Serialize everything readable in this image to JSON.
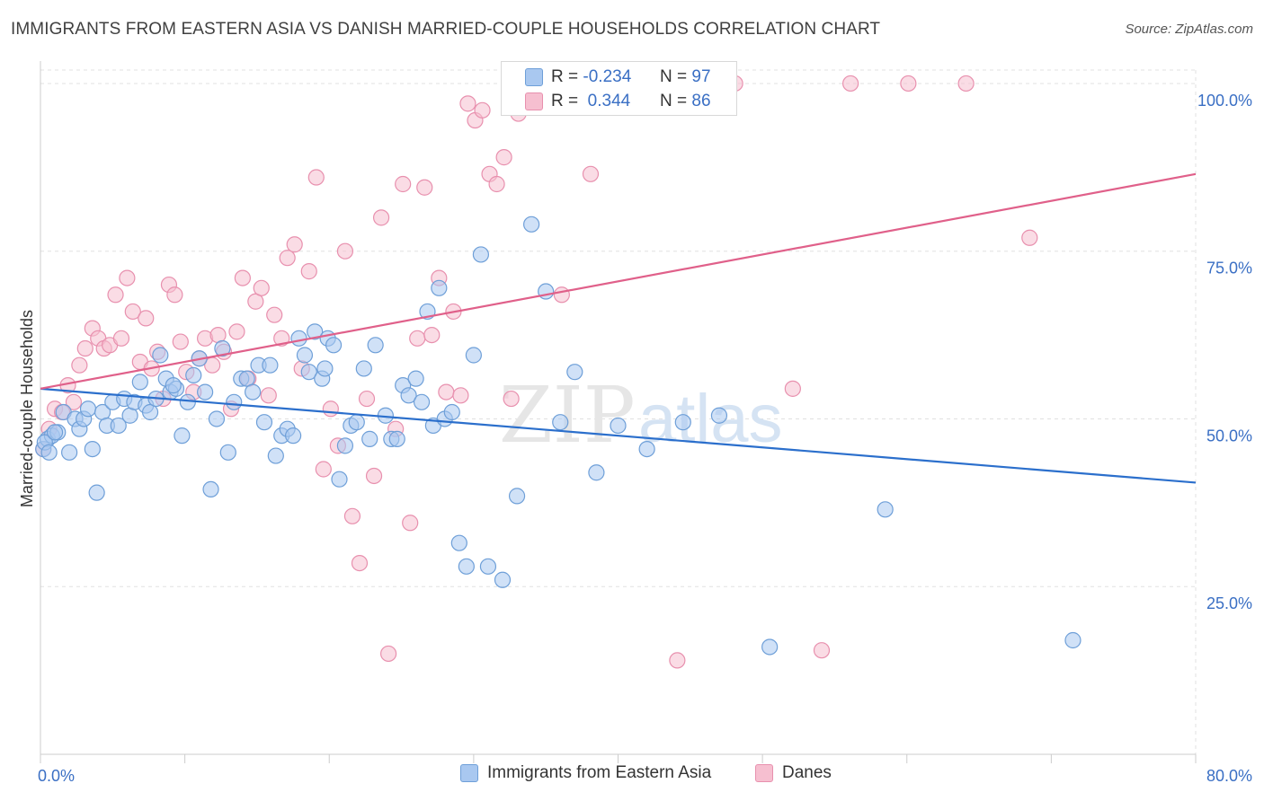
{
  "header": {
    "title": "IMMIGRANTS FROM EASTERN ASIA VS DANISH MARRIED-COUPLE HOUSEHOLDS CORRELATION CHART",
    "source": "Source: ZipAtlas.com"
  },
  "watermark": {
    "zip": "ZIP",
    "atlas": "atlas"
  },
  "stats": {
    "blue": {
      "r_label": "R =",
      "r_value": "-0.234",
      "n_label": "N =",
      "n_value": "97"
    },
    "pink": {
      "r_label": "R =",
      "r_value": "0.344",
      "n_label": "N =",
      "n_value": "86"
    }
  },
  "colors": {
    "blue_fill": "#a9c8f0",
    "blue_stroke": "#6e9fd8",
    "blue_line": "#2b6fcc",
    "pink_fill": "#f6bfd0",
    "pink_stroke": "#e890ae",
    "pink_line": "#e0608a",
    "grid": "#e0e0e0",
    "axis_label": "#3a6fc4"
  },
  "chart_data": {
    "type": "scatter",
    "title": "IMMIGRANTS FROM EASTERN ASIA VS DANISH MARRIED-COUPLE HOUSEHOLDS CORRELATION CHART",
    "xlabel": "",
    "ylabel": "Married-couple Households",
    "xlim": [
      0,
      80
    ],
    "ylim": [
      0,
      102
    ],
    "x_tick_labels": [
      "0.0%",
      "80.0%"
    ],
    "y_ticks": [
      25,
      50,
      75,
      100
    ],
    "y_tick_labels": [
      "25.0%",
      "50.0%",
      "75.0%",
      "100.0%"
    ],
    "grid": true,
    "legend_position": "bottom",
    "series": [
      {
        "name": "Immigrants from Eastern Asia",
        "color": "#a9c8f0",
        "trend": {
          "x": [
            0,
            80
          ],
          "y": [
            54.5,
            40.5
          ]
        },
        "points": [
          [
            0.2,
            45.5
          ],
          [
            0.5,
            47
          ],
          [
            0.8,
            47.5
          ],
          [
            1.2,
            48
          ],
          [
            1.6,
            51
          ],
          [
            2.0,
            45
          ],
          [
            2.4,
            50
          ],
          [
            2.7,
            48.5
          ],
          [
            3.0,
            50
          ],
          [
            3.3,
            51.5
          ],
          [
            3.6,
            45.5
          ],
          [
            3.9,
            39
          ],
          [
            4.3,
            51
          ],
          [
            4.6,
            49
          ],
          [
            5.0,
            52.5
          ],
          [
            5.4,
            49
          ],
          [
            5.8,
            53
          ],
          [
            6.2,
            50.5
          ],
          [
            6.5,
            52.5
          ],
          [
            6.9,
            55.5
          ],
          [
            7.3,
            52
          ],
          [
            7.6,
            51
          ],
          [
            8.0,
            53
          ],
          [
            8.3,
            59.5
          ],
          [
            8.7,
            56
          ],
          [
            9.0,
            54
          ],
          [
            9.4,
            54.5
          ],
          [
            9.8,
            47.5
          ],
          [
            10.2,
            52.5
          ],
          [
            10.6,
            56.5
          ],
          [
            11.0,
            59
          ],
          [
            11.4,
            54
          ],
          [
            11.8,
            39.5
          ],
          [
            12.2,
            50
          ],
          [
            12.6,
            60.5
          ],
          [
            13.0,
            45
          ],
          [
            13.4,
            52.5
          ],
          [
            13.9,
            56
          ],
          [
            14.3,
            56
          ],
          [
            14.7,
            54
          ],
          [
            15.1,
            58
          ],
          [
            15.5,
            49.5
          ],
          [
            15.9,
            58
          ],
          [
            16.3,
            44.5
          ],
          [
            16.7,
            47.5
          ],
          [
            17.1,
            48.5
          ],
          [
            17.5,
            47.5
          ],
          [
            17.9,
            62
          ],
          [
            18.3,
            59.5
          ],
          [
            18.6,
            57
          ],
          [
            19.0,
            63
          ],
          [
            19.5,
            56
          ],
          [
            19.9,
            62
          ],
          [
            20.3,
            61
          ],
          [
            20.7,
            41
          ],
          [
            21.1,
            46
          ],
          [
            21.5,
            49
          ],
          [
            21.9,
            49.5
          ],
          [
            22.4,
            57.5
          ],
          [
            22.8,
            47
          ],
          [
            23.2,
            61
          ],
          [
            23.9,
            50.5
          ],
          [
            24.3,
            47
          ],
          [
            24.7,
            47
          ],
          [
            25.1,
            55
          ],
          [
            25.5,
            53.5
          ],
          [
            26.0,
            56
          ],
          [
            26.4,
            52.5
          ],
          [
            26.8,
            66
          ],
          [
            27.2,
            49
          ],
          [
            27.6,
            69.5
          ],
          [
            28.0,
            50
          ],
          [
            28.5,
            51
          ],
          [
            29.0,
            31.5
          ],
          [
            29.5,
            28
          ],
          [
            30.0,
            59.5
          ],
          [
            30.5,
            74.5
          ],
          [
            31.0,
            28
          ],
          [
            32.0,
            26
          ],
          [
            33.0,
            38.5
          ],
          [
            34.0,
            79
          ],
          [
            35.0,
            69
          ],
          [
            36.0,
            49.5
          ],
          [
            37.0,
            57
          ],
          [
            38.5,
            42
          ],
          [
            40.0,
            49
          ],
          [
            42.0,
            45.5
          ],
          [
            44.5,
            49.5
          ],
          [
            47.0,
            50.5
          ],
          [
            50.5,
            16
          ],
          [
            58.5,
            36.5
          ],
          [
            71.5,
            17
          ],
          [
            0.3,
            46.5
          ],
          [
            0.6,
            45
          ],
          [
            1.0,
            48
          ],
          [
            9.2,
            55
          ],
          [
            19.7,
            57.5
          ]
        ]
      },
      {
        "name": "Danes",
        "color": "#f6bfd0",
        "trend": {
          "x": [
            0,
            80
          ],
          "y": [
            54.5,
            86.5
          ]
        },
        "points": [
          [
            0.2,
            45.5
          ],
          [
            0.6,
            48.5
          ],
          [
            1.0,
            51.5
          ],
          [
            1.5,
            51
          ],
          [
            1.9,
            55
          ],
          [
            2.3,
            52.5
          ],
          [
            2.7,
            58
          ],
          [
            3.1,
            60.5
          ],
          [
            3.6,
            63.5
          ],
          [
            4.0,
            62
          ],
          [
            4.4,
            60.5
          ],
          [
            4.8,
            61
          ],
          [
            5.2,
            68.5
          ],
          [
            5.6,
            62
          ],
          [
            6.0,
            71
          ],
          [
            6.4,
            66
          ],
          [
            6.9,
            58.5
          ],
          [
            7.3,
            65
          ],
          [
            7.7,
            57.5
          ],
          [
            8.1,
            60
          ],
          [
            8.5,
            53
          ],
          [
            8.9,
            70
          ],
          [
            9.3,
            68.5
          ],
          [
            9.7,
            61.5
          ],
          [
            10.1,
            57
          ],
          [
            10.6,
            54
          ],
          [
            11.0,
            59
          ],
          [
            11.4,
            62
          ],
          [
            11.9,
            58
          ],
          [
            12.3,
            62.5
          ],
          [
            12.7,
            60
          ],
          [
            13.2,
            51.5
          ],
          [
            13.6,
            63
          ],
          [
            14.0,
            71
          ],
          [
            14.4,
            56
          ],
          [
            14.9,
            67.5
          ],
          [
            15.3,
            69.5
          ],
          [
            15.8,
            53.5
          ],
          [
            16.2,
            65.5
          ],
          [
            16.7,
            62
          ],
          [
            17.1,
            74
          ],
          [
            17.6,
            76
          ],
          [
            18.1,
            57.5
          ],
          [
            18.6,
            72
          ],
          [
            19.1,
            86
          ],
          [
            19.6,
            42.5
          ],
          [
            20.1,
            51.5
          ],
          [
            20.6,
            46
          ],
          [
            21.1,
            75
          ],
          [
            21.6,
            35.5
          ],
          [
            22.1,
            28.5
          ],
          [
            22.6,
            53
          ],
          [
            23.1,
            41.5
          ],
          [
            23.6,
            80
          ],
          [
            24.1,
            15
          ],
          [
            24.6,
            48.5
          ],
          [
            25.1,
            85
          ],
          [
            25.6,
            34.5
          ],
          [
            26.1,
            62
          ],
          [
            26.6,
            84.5
          ],
          [
            27.1,
            62.5
          ],
          [
            27.6,
            71
          ],
          [
            28.1,
            54
          ],
          [
            28.6,
            66
          ],
          [
            29.1,
            53.5
          ],
          [
            29.6,
            97
          ],
          [
            30.1,
            94.5
          ],
          [
            30.6,
            96
          ],
          [
            31.1,
            86.5
          ],
          [
            31.6,
            85
          ],
          [
            32.1,
            89
          ],
          [
            32.6,
            53
          ],
          [
            33.1,
            95.5
          ],
          [
            34.1,
            100
          ],
          [
            35.1,
            99.5
          ],
          [
            36.1,
            68.5
          ],
          [
            38.1,
            86.5
          ],
          [
            40.1,
            100
          ],
          [
            44.1,
            14
          ],
          [
            48.1,
            100
          ],
          [
            52.1,
            54.5
          ],
          [
            54.1,
            15.5
          ],
          [
            56.1,
            100
          ],
          [
            60.1,
            100
          ],
          [
            64.1,
            100
          ],
          [
            68.5,
            77
          ]
        ]
      }
    ]
  },
  "legend": {
    "items": [
      {
        "label": "Immigrants from Eastern Asia"
      },
      {
        "label": "Danes"
      }
    ]
  }
}
